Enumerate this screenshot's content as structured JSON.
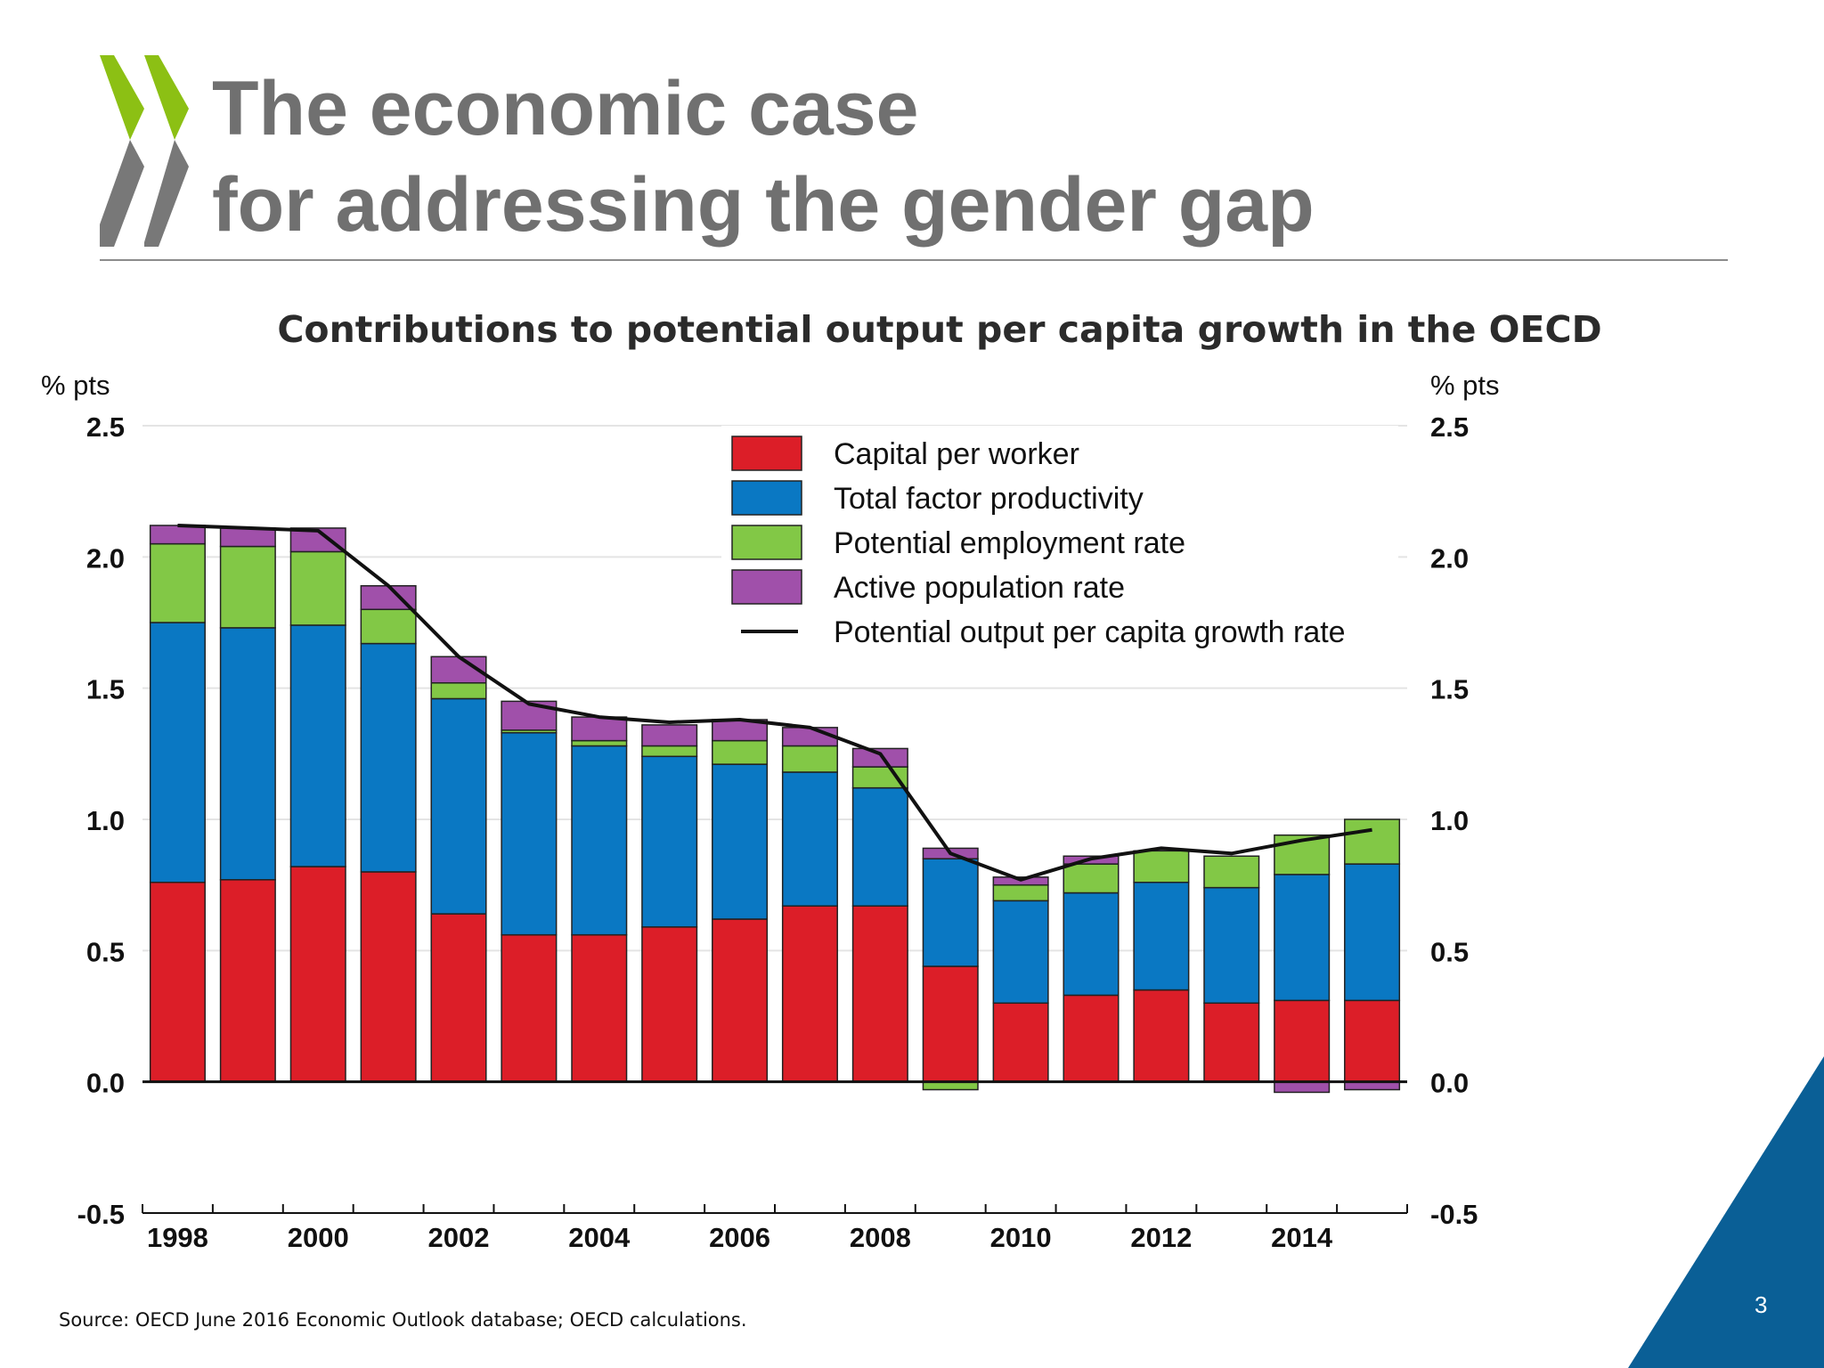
{
  "slide": {
    "title_line1": "The economic case",
    "title_line2": "for addressing the gender gap",
    "source": "Source: OECD June 2016 Economic Outlook database; OECD calculations.",
    "page_number": "3"
  },
  "colors": {
    "capital": "#dc1e28",
    "tfp": "#0a78c3",
    "employment": "#82c846",
    "active": "#a050aa",
    "line": "#111111",
    "title_gray": "#707070",
    "logo_green": "#8cc014",
    "logo_gray": "#787878",
    "corner_blue": "#0a5f96"
  },
  "chart_data": {
    "type": "bar",
    "stacked": true,
    "title": "Contributions to potential output per capita growth in the OECD",
    "ylabel_left": "% pts",
    "ylabel_right": "% pts",
    "ylim": [
      -0.5,
      2.5
    ],
    "yticks": [
      "2.5",
      "2.0",
      "1.5",
      "1.0",
      "0.5",
      "0.0",
      "-0.5"
    ],
    "ytick_values": [
      2.5,
      2.0,
      1.5,
      1.0,
      0.5,
      0.0,
      -0.5
    ],
    "grid": true,
    "legend_position": "top-right",
    "x": [
      1998,
      1999,
      2000,
      2001,
      2002,
      2003,
      2004,
      2005,
      2006,
      2007,
      2008,
      2009,
      2010,
      2011,
      2012,
      2013,
      2014,
      2015
    ],
    "xtick_labels": [
      "1998",
      "2000",
      "2002",
      "2004",
      "2006",
      "2008",
      "2010",
      "2012",
      "2014"
    ],
    "series": [
      {
        "name": "Capital per worker",
        "key": "capital",
        "values": [
          0.76,
          0.77,
          0.82,
          0.8,
          0.64,
          0.56,
          0.56,
          0.59,
          0.62,
          0.67,
          0.67,
          0.44,
          0.3,
          0.33,
          0.35,
          0.3,
          0.31,
          0.31
        ]
      },
      {
        "name": "Total factor productivity",
        "key": "tfp",
        "values": [
          0.99,
          0.96,
          0.92,
          0.87,
          0.82,
          0.77,
          0.72,
          0.65,
          0.59,
          0.51,
          0.45,
          0.41,
          0.39,
          0.39,
          0.41,
          0.44,
          0.48,
          0.52
        ]
      },
      {
        "name": "Potential employment rate",
        "key": "employment",
        "values": [
          0.3,
          0.31,
          0.28,
          0.13,
          0.06,
          0.01,
          0.02,
          0.04,
          0.09,
          0.1,
          0.08,
          -0.03,
          0.06,
          0.11,
          0.12,
          0.12,
          0.15,
          0.17
        ]
      },
      {
        "name": "Active population rate",
        "key": "active",
        "values": [
          0.07,
          0.07,
          0.09,
          0.09,
          0.1,
          0.11,
          0.09,
          0.08,
          0.08,
          0.07,
          0.07,
          0.04,
          0.03,
          0.03,
          0.0,
          0.0,
          -0.04,
          -0.03
        ]
      }
    ],
    "line_series": {
      "name": "Potential output per capita growth rate",
      "key": "line",
      "values": [
        2.12,
        2.11,
        2.1,
        1.89,
        1.62,
        1.44,
        1.39,
        1.37,
        1.38,
        1.35,
        1.25,
        0.87,
        0.77,
        0.85,
        0.89,
        0.87,
        0.92,
        0.96
      ]
    }
  }
}
